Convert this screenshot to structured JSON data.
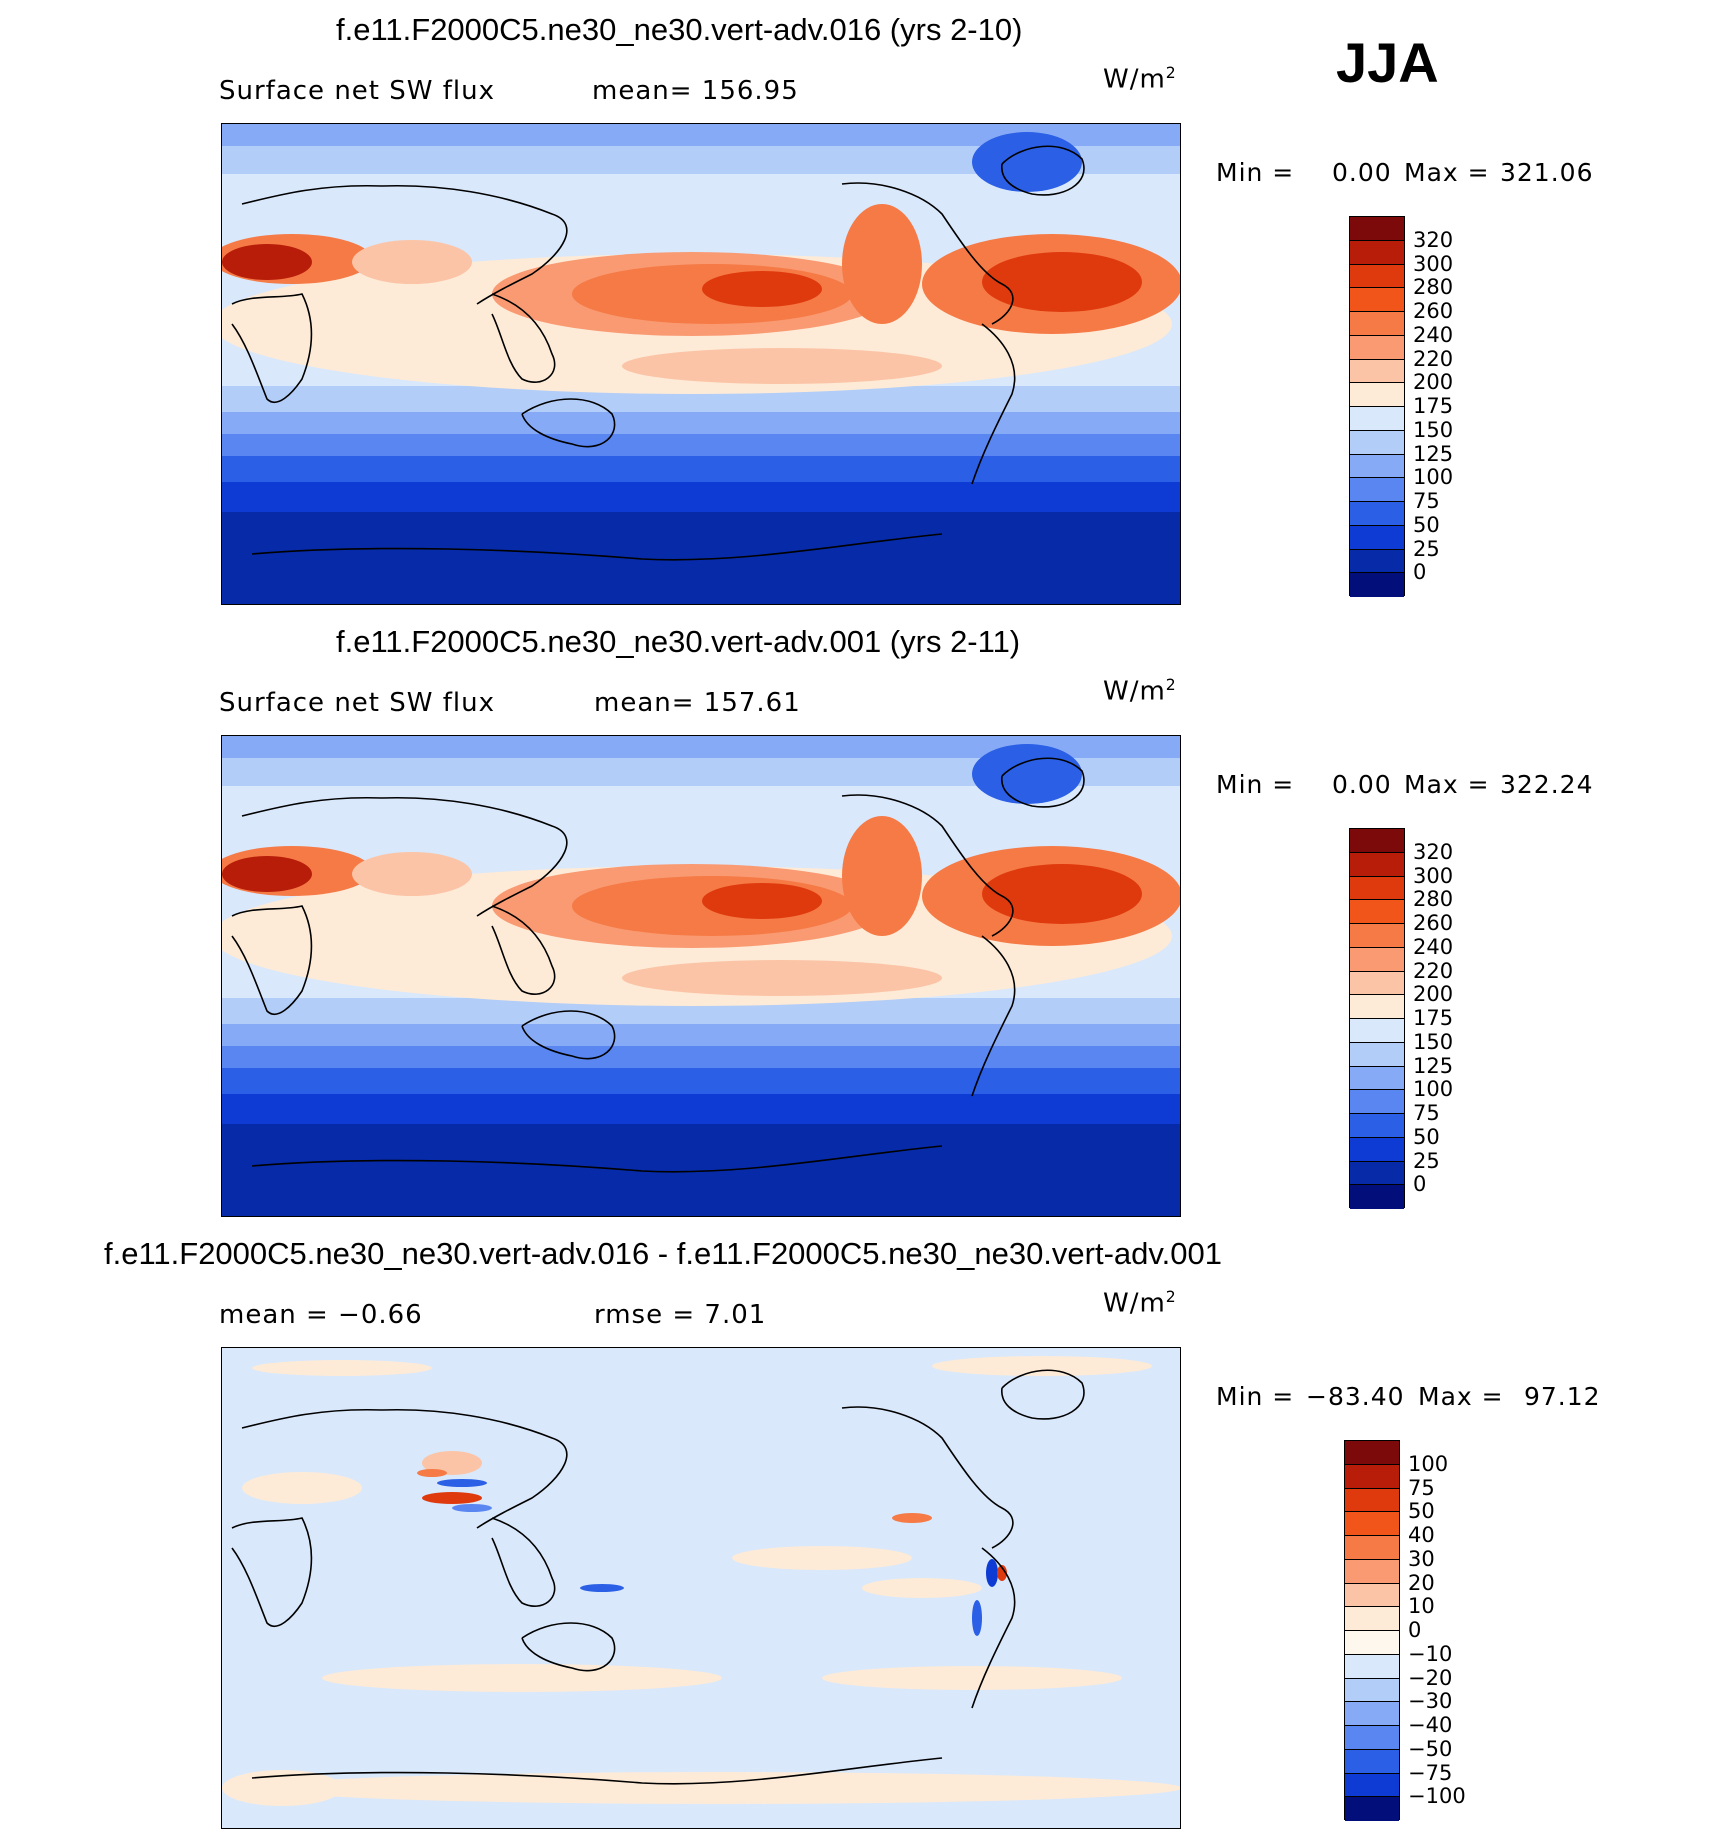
{
  "season": "JJA",
  "panels": [
    {
      "title": "f.e11.F2000C5.ne30_ne30.vert-adv.016 (yrs 2-10)",
      "left_label": "Surface net SW flux",
      "right_label": "mean=  156.95",
      "units": "W/m",
      "units_exp": "2",
      "min_label": "Min =",
      "min_value": "0.00",
      "max_label": "Max =",
      "max_value": "321.06",
      "colorbar": {
        "ticks": [
          "320",
          "300",
          "280",
          "260",
          "240",
          "220",
          "200",
          "175",
          "150",
          "125",
          "100",
          "75",
          "50",
          "25",
          "0"
        ],
        "colors": [
          "#7d0a0a",
          "#b81d0a",
          "#df3a0e",
          "#f2551a",
          "#f57a45",
          "#f99a72",
          "#fcc4a6",
          "#fdebd8",
          "#d9e8fb",
          "#b2cdf8",
          "#86aaf6",
          "#5a86f2",
          "#2a5fe6",
          "#0d3bd4",
          "#062aa8",
          "#020e7a"
        ]
      }
    },
    {
      "title": "f.e11.F2000C5.ne30_ne30.vert-adv.001 (yrs 2-11)",
      "left_label": "Surface net SW flux",
      "right_label": "mean=  157.61",
      "units": "W/m",
      "units_exp": "2",
      "min_label": "Min =",
      "min_value": "0.00",
      "max_label": "Max =",
      "max_value": "322.24",
      "colorbar": {
        "ticks": [
          "320",
          "300",
          "280",
          "260",
          "240",
          "220",
          "200",
          "175",
          "150",
          "125",
          "100",
          "75",
          "50",
          "25",
          "0"
        ],
        "colors": [
          "#7d0a0a",
          "#b81d0a",
          "#df3a0e",
          "#f2551a",
          "#f57a45",
          "#f99a72",
          "#fcc4a6",
          "#fdebd8",
          "#d9e8fb",
          "#b2cdf8",
          "#86aaf6",
          "#5a86f2",
          "#2a5fe6",
          "#0d3bd4",
          "#062aa8",
          "#020e7a"
        ]
      }
    },
    {
      "title": "f.e11.F2000C5.ne30_ne30.vert-adv.016 - f.e11.F2000C5.ne30_ne30.vert-adv.001",
      "left_label": "mean =   −0.66",
      "right_label": "rmse =    7.01",
      "units": "W/m",
      "units_exp": "2",
      "min_label": "Min =",
      "min_value": "−83.40",
      "max_label": "Max =",
      "max_value": "97.12",
      "colorbar": {
        "ticks": [
          "100",
          "75",
          "50",
          "40",
          "30",
          "20",
          "10",
          "0",
          "−10",
          "−20",
          "−30",
          "−40",
          "−50",
          "−75",
          "−100"
        ],
        "colors": [
          "#7d0a0a",
          "#b81d0a",
          "#df3a0e",
          "#f2551a",
          "#f57a45",
          "#f99a72",
          "#fcc4a6",
          "#fdebd8",
          "#fdf7ee",
          "#d9e8fb",
          "#b2cdf8",
          "#86aaf6",
          "#5a86f2",
          "#2a5fe6",
          "#0d3bd4",
          "#020e7a"
        ]
      }
    }
  ]
}
